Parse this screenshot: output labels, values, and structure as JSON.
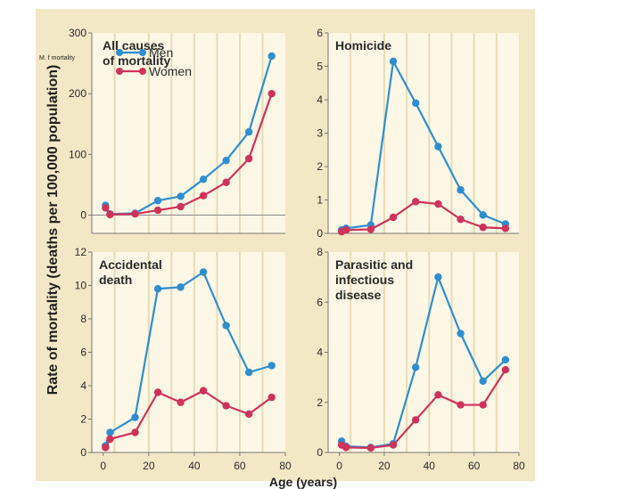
{
  "slide_note": "M. f mortality",
  "y_axis_label": "Rate of mortality (deaths per 100,000 population)",
  "x_axis_label": "Age (years)",
  "colors": {
    "men": "#2f8fce",
    "women": "#d0335a",
    "panel_bg": "#fdf7e6",
    "figure_bg": "#f3e8c6",
    "grid": "#e8dcb6"
  },
  "legend": {
    "men": "Men",
    "women": "Women"
  },
  "chart_data": [
    {
      "type": "line",
      "title": [
        "All causes",
        "of mortality"
      ],
      "x": [
        1,
        3,
        14,
        24,
        34,
        44,
        54,
        64,
        74
      ],
      "x_ticks": [],
      "ylim": [
        -30,
        300
      ],
      "y_ticks": [
        0,
        100,
        200,
        300
      ],
      "zero_line": true,
      "series": [
        {
          "name": "Men",
          "values": [
            16,
            2,
            3,
            24,
            31,
            59,
            90,
            137,
            262
          ]
        },
        {
          "name": "Women",
          "values": [
            12,
            1,
            2,
            8,
            14,
            32,
            54,
            93,
            200
          ]
        }
      ]
    },
    {
      "type": "line",
      "title": [
        "Homicide"
      ],
      "x": [
        1,
        3,
        14,
        24,
        34,
        44,
        54,
        64,
        74
      ],
      "x_ticks": [],
      "ylim": [
        0,
        6
      ],
      "y_ticks": [
        0,
        1,
        2,
        3,
        4,
        5,
        6
      ],
      "zero_line": false,
      "series": [
        {
          "name": "Men",
          "values": [
            0.1,
            0.15,
            0.25,
            5.15,
            3.9,
            2.6,
            1.3,
            0.55,
            0.28
          ]
        },
        {
          "name": "Women",
          "values": [
            0.05,
            0.1,
            0.12,
            0.48,
            0.95,
            0.88,
            0.42,
            0.18,
            0.15
          ]
        }
      ]
    },
    {
      "type": "line",
      "title": [
        "Accidental",
        "death"
      ],
      "x": [
        1,
        3,
        14,
        24,
        34,
        44,
        54,
        64,
        74
      ],
      "x_ticks": [
        0,
        20,
        40,
        60,
        80
      ],
      "ylim": [
        0,
        12
      ],
      "y_ticks": [
        0,
        2,
        4,
        6,
        8,
        10,
        12
      ],
      "zero_line": false,
      "series": [
        {
          "name": "Men",
          "values": [
            0.4,
            1.2,
            2.1,
            9.8,
            9.9,
            10.8,
            7.6,
            4.8,
            5.2
          ]
        },
        {
          "name": "Women",
          "values": [
            0.3,
            0.8,
            1.2,
            3.6,
            3.0,
            3.7,
            2.8,
            2.3,
            3.3
          ]
        }
      ]
    },
    {
      "type": "line",
      "title": [
        "Parasitic and",
        "infectious",
        "disease"
      ],
      "x": [
        1,
        3,
        14,
        24,
        34,
        44,
        54,
        64,
        74
      ],
      "x_ticks": [
        0,
        20,
        40,
        60,
        80
      ],
      "ylim": [
        0,
        8
      ],
      "y_ticks": [
        0,
        2,
        4,
        6,
        8
      ],
      "zero_line": false,
      "series": [
        {
          "name": "Men",
          "values": [
            0.45,
            0.25,
            0.2,
            0.35,
            3.4,
            7.0,
            4.75,
            2.85,
            3.7
          ]
        },
        {
          "name": "Women",
          "values": [
            0.3,
            0.2,
            0.18,
            0.3,
            1.3,
            2.3,
            1.9,
            1.9,
            3.3
          ]
        }
      ]
    }
  ]
}
